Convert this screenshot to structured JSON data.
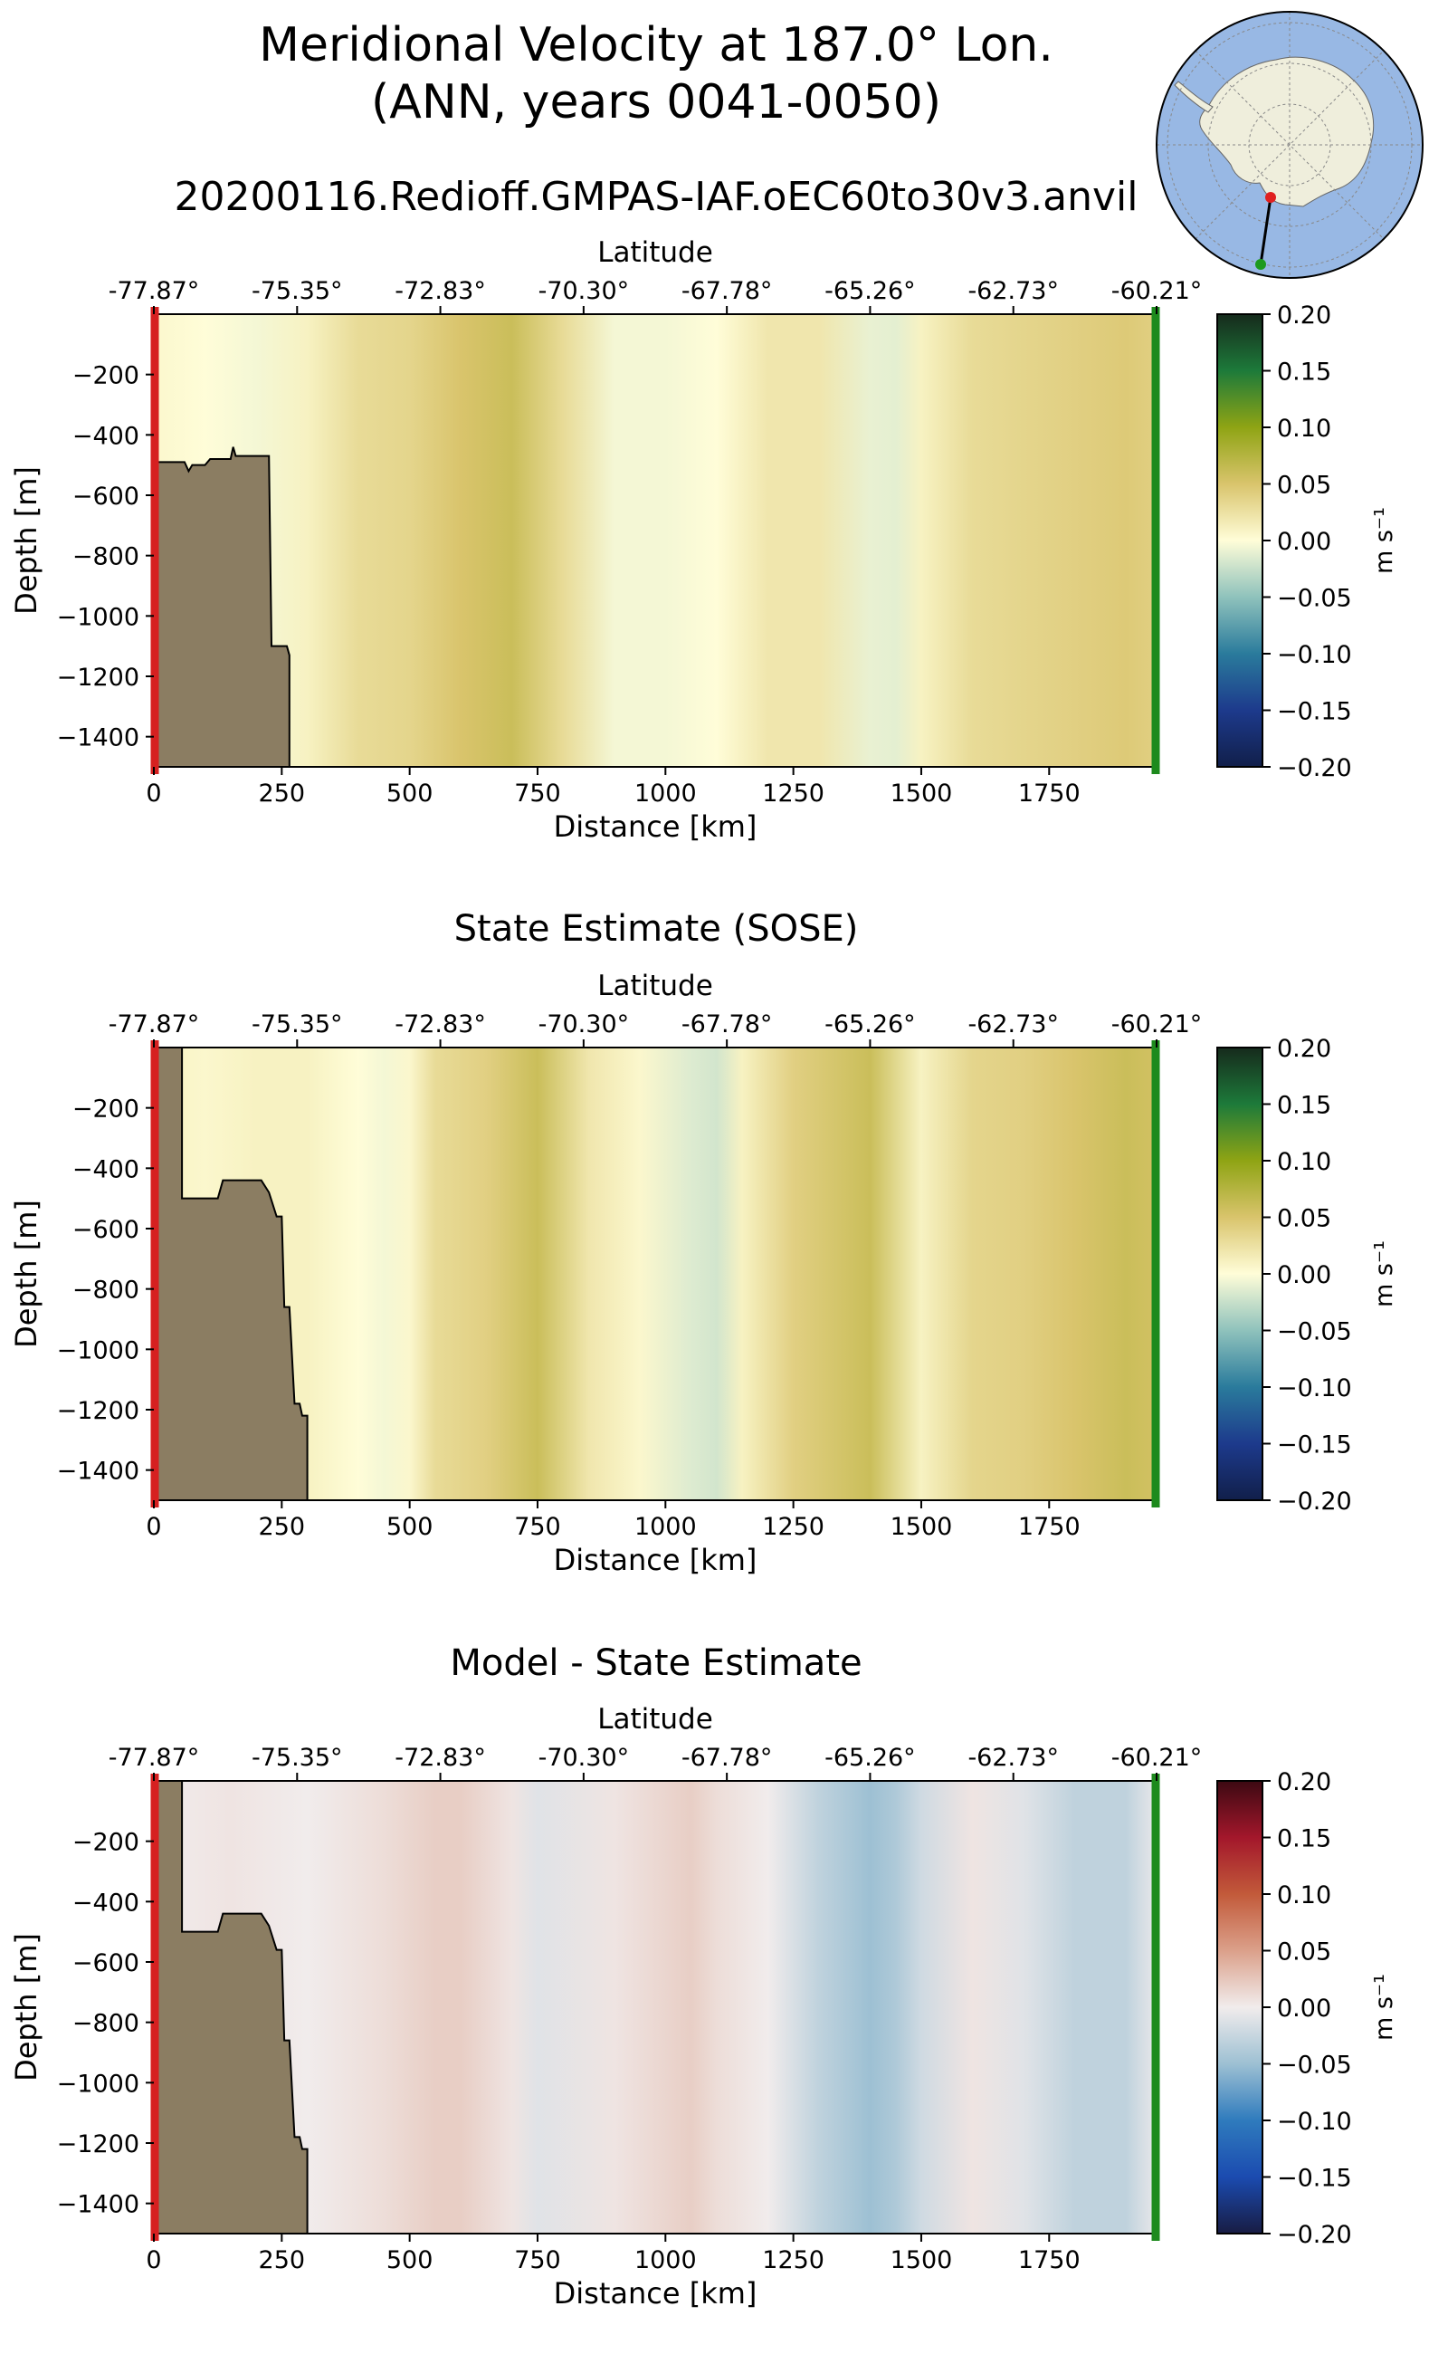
{
  "figure": {
    "title_line1": "Meridional Velocity at 187.0° Lon.",
    "title_line2": "(ANN, years 0041-0050)",
    "colors": {
      "land": "#8b7d62",
      "ocean": "#98b8e4",
      "ice": "#efeedc",
      "start_marker": "#d62020",
      "end_marker": "#1d8a1d"
    }
  },
  "chart_data": [
    {
      "type": "heatmap",
      "title": "20200116.Redioff.GMPAS-IAF.oEC60to30v3.anvil",
      "xlabel": "Distance [km]",
      "ylabel": "Depth [m]",
      "top_xlabel": "Latitude",
      "xlim": [
        0,
        1960
      ],
      "ylim": [
        -1500,
        0
      ],
      "x_ticks": [
        "0",
        "250",
        "500",
        "750",
        "1000",
        "1250",
        "1500",
        "1750"
      ],
      "y_ticks": [
        "−200",
        "−400",
        "−600",
        "−800",
        "−1000",
        "−1200",
        "−1400"
      ],
      "lat_ticks": [
        "-77.87°",
        "-75.35°",
        "-72.83°",
        "-70.30°",
        "-67.78°",
        "-65.26°",
        "-62.73°",
        "-60.21°"
      ],
      "colormap": "speed",
      "colorbar": {
        "label": "m s⁻¹",
        "min": -0.2,
        "max": 0.2,
        "ticks": [
          "0.20",
          "0.15",
          "0.10",
          "0.05",
          "0.00",
          "−0.05",
          "−0.10",
          "−0.15",
          "−0.20"
        ]
      },
      "velocity_profile": {
        "distance_km": [
          0,
          100,
          200,
          300,
          400,
          500,
          600,
          700,
          800,
          900,
          1000,
          1100,
          1200,
          1300,
          1400,
          1450,
          1500,
          1600,
          1700,
          1800,
          1900,
          1960
        ],
        "value": [
          0.005,
          0.0,
          -0.005,
          0.01,
          0.03,
          0.035,
          0.05,
          0.06,
          0.03,
          -0.005,
          -0.005,
          0.0,
          0.02,
          0.02,
          -0.01,
          -0.012,
          0.01,
          0.03,
          0.035,
          0.04,
          0.045,
          0.04
        ]
      },
      "bathymetry": {
        "distance_km": [
          0,
          60,
          68,
          75,
          100,
          110,
          150,
          155,
          160,
          225,
          230,
          260,
          265,
          265
        ],
        "depth_m": [
          -490,
          -490,
          -520,
          -500,
          -500,
          -480,
          -480,
          -440,
          -470,
          -470,
          -1100,
          -1100,
          -1130,
          -1500
        ]
      }
    },
    {
      "type": "heatmap",
      "title": "State Estimate (SOSE)",
      "xlabel": "Distance [km]",
      "ylabel": "Depth [m]",
      "top_xlabel": "Latitude",
      "xlim": [
        0,
        1960
      ],
      "ylim": [
        -1500,
        0
      ],
      "x_ticks": [
        "0",
        "250",
        "500",
        "750",
        "1000",
        "1250",
        "1500",
        "1750"
      ],
      "y_ticks": [
        "−200",
        "−400",
        "−600",
        "−800",
        "−1000",
        "−1200",
        "−1400"
      ],
      "lat_ticks": [
        "-77.87°",
        "-75.35°",
        "-72.83°",
        "-70.30°",
        "-67.78°",
        "-65.26°",
        "-62.73°",
        "-60.21°"
      ],
      "colormap": "speed",
      "colorbar": {
        "label": "m s⁻¹",
        "min": -0.2,
        "max": 0.2,
        "ticks": [
          "0.20",
          "0.15",
          "0.10",
          "0.05",
          "0.00",
          "−0.05",
          "−0.10",
          "−0.15",
          "−0.20"
        ]
      },
      "velocity_profile": {
        "distance_km": [
          0,
          100,
          200,
          300,
          400,
          450,
          500,
          550,
          650,
          750,
          850,
          950,
          1050,
          1100,
          1150,
          1250,
          1400,
          1500,
          1600,
          1700,
          1800,
          1900,
          1960
        ],
        "value": [
          0.01,
          0.005,
          0.01,
          0.01,
          0.0,
          -0.005,
          0.005,
          0.03,
          0.04,
          0.06,
          0.02,
          0.005,
          -0.015,
          -0.02,
          0.01,
          0.04,
          0.06,
          0.01,
          0.035,
          0.04,
          0.05,
          0.06,
          0.055
        ]
      },
      "bathymetry": {
        "distance_km": [
          0,
          55,
          55,
          125,
          135,
          210,
          225,
          240,
          250,
          255,
          265,
          275,
          285,
          290,
          300,
          300
        ],
        "depth_m": [
          0,
          0,
          -500,
          -500,
          -440,
          -440,
          -480,
          -560,
          -560,
          -860,
          -860,
          -1180,
          -1180,
          -1220,
          -1220,
          -1500
        ]
      }
    },
    {
      "type": "heatmap",
      "title": "Model - State Estimate",
      "xlabel": "Distance [km]",
      "ylabel": "Depth [m]",
      "top_xlabel": "Latitude",
      "xlim": [
        0,
        1960
      ],
      "ylim": [
        -1500,
        0
      ],
      "x_ticks": [
        "0",
        "250",
        "500",
        "750",
        "1000",
        "1250",
        "1500",
        "1750"
      ],
      "y_ticks": [
        "−200",
        "−400",
        "−600",
        "−800",
        "−1000",
        "−1200",
        "−1400"
      ],
      "lat_ticks": [
        "-77.87°",
        "-75.35°",
        "-72.83°",
        "-70.30°",
        "-67.78°",
        "-65.26°",
        "-62.73°",
        "-60.21°"
      ],
      "colormap": "balance",
      "colorbar": {
        "label": "m s⁻¹",
        "min": -0.2,
        "max": 0.2,
        "ticks": [
          "0.20",
          "0.15",
          "0.10",
          "0.05",
          "0.00",
          "−0.05",
          "−0.10",
          "−0.15",
          "−0.20"
        ]
      },
      "velocity_profile": {
        "distance_km": [
          0,
          150,
          300,
          450,
          550,
          600,
          700,
          750,
          900,
          1050,
          1100,
          1200,
          1300,
          1400,
          1450,
          1500,
          1600,
          1700,
          1800,
          1900,
          1960
        ],
        "value": [
          0.0,
          0.005,
          0.0,
          0.01,
          0.02,
          0.02,
          0.005,
          -0.01,
          0.005,
          0.02,
          0.01,
          0.0,
          -0.03,
          -0.05,
          -0.04,
          -0.02,
          0.005,
          -0.01,
          -0.03,
          -0.03,
          -0.005
        ]
      },
      "bathymetry": {
        "distance_km": [
          0,
          55,
          55,
          125,
          135,
          210,
          225,
          240,
          250,
          255,
          265,
          275,
          285,
          290,
          300,
          300
        ],
        "depth_m": [
          0,
          0,
          -500,
          -500,
          -440,
          -440,
          -480,
          -560,
          -560,
          -860,
          -860,
          -1180,
          -1180,
          -1220,
          -1220,
          -1500
        ]
      }
    }
  ]
}
